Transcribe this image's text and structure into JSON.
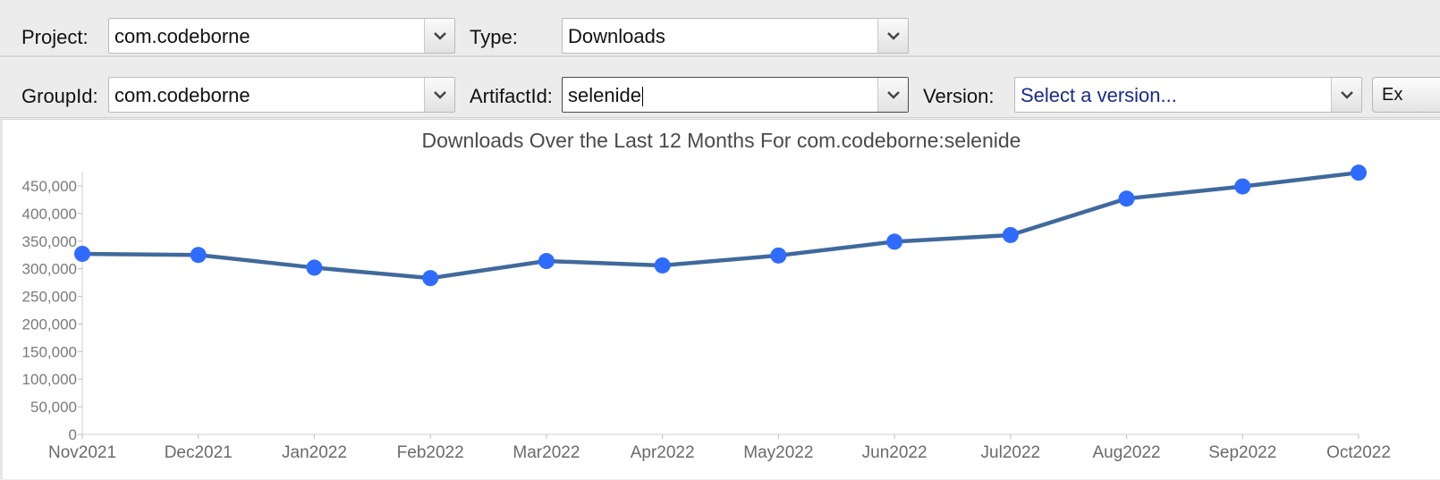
{
  "filters_row1": {
    "project_label": "Project:",
    "project_value": "com.codeborne",
    "type_label": "Type:",
    "type_value": "Downloads"
  },
  "filters_row2": {
    "groupid_label": "GroupId:",
    "groupid_value": "com.codeborne",
    "artifactid_label": "ArtifactId:",
    "artifactid_value": "selenide",
    "version_label": "Version:",
    "version_placeholder": "Select a version...",
    "export_button_label": "Ex"
  },
  "icons": {
    "dropdown": "chevron-down-icon"
  },
  "colors": {
    "line": "#40699c",
    "point": "#2f6bff",
    "version_placeholder": "#1a2a8a"
  },
  "chart_data": {
    "type": "line",
    "title": "Downloads Over the Last 12 Months For com.codeborne:selenide",
    "categories": [
      "Nov2021",
      "Dec2021",
      "Jan2022",
      "Feb2022",
      "Mar2022",
      "Apr2022",
      "May2022",
      "Jun2022",
      "Jul2022",
      "Aug2022",
      "Sep2022",
      "Oct2022"
    ],
    "series": [
      {
        "values": [
          327000,
          325000,
          302000,
          283000,
          314000,
          306000,
          324000,
          349000,
          361000,
          427000,
          449000,
          474000
        ]
      }
    ],
    "ylim": [
      0,
      450000
    ],
    "yticks": [
      "0",
      "50,000",
      "100,000",
      "150,000",
      "200,000",
      "250,000",
      "300,000",
      "350,000",
      "400,000",
      "450,000"
    ],
    "grid": false,
    "legend": "none"
  }
}
